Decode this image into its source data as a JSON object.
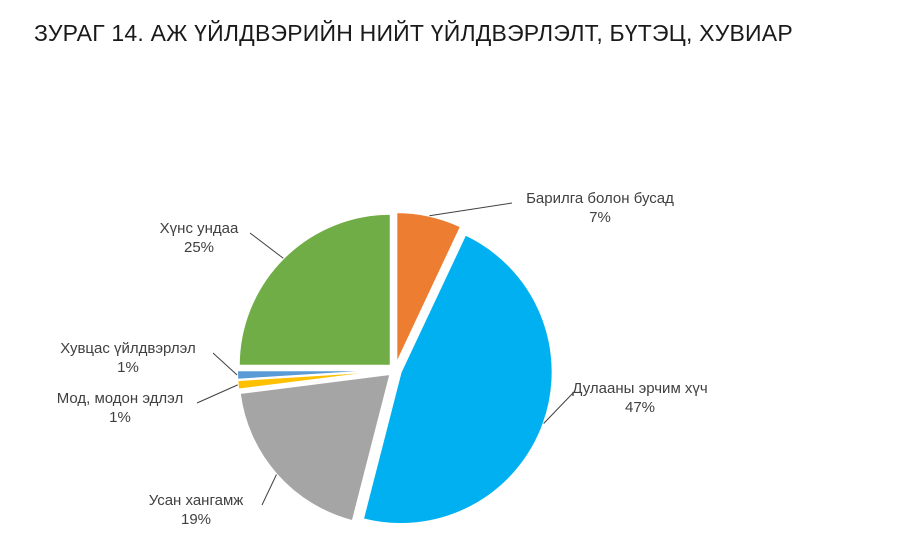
{
  "header": {
    "title": "ЗУРАГ 14. АЖ ҮЙЛДВЭРИЙН НИЙТ ҮЙЛДВЭРЛЭЛТ, БҮТЭЦ, ХУВИАР"
  },
  "chart_data": {
    "type": "pie",
    "title": "ЗУРАГ 14. АЖ ҮЙЛДВЭРИЙН НИЙТ ҮЙЛДВЭРЛЭЛТ, БҮТЭЦ, ХУВИАР",
    "categories": [
      "Барилга болон бусад",
      "Дулааны эрчим хүч",
      "Усан хангамж",
      "Мод, модон эдлэл",
      "Хувцас үйлдвэрлэл",
      "Хүнс ундаа"
    ],
    "values": [
      7,
      47,
      19,
      1,
      1,
      25
    ],
    "value_labels": [
      "7%",
      "47%",
      "19%",
      "1%",
      "1%",
      "25%"
    ],
    "colors": [
      "#ED7D31",
      "#00B0F0",
      "#A5A5A5",
      "#FFC000",
      "#5B9BD5",
      "#70AD47"
    ],
    "legend": "none",
    "exploded": true
  }
}
